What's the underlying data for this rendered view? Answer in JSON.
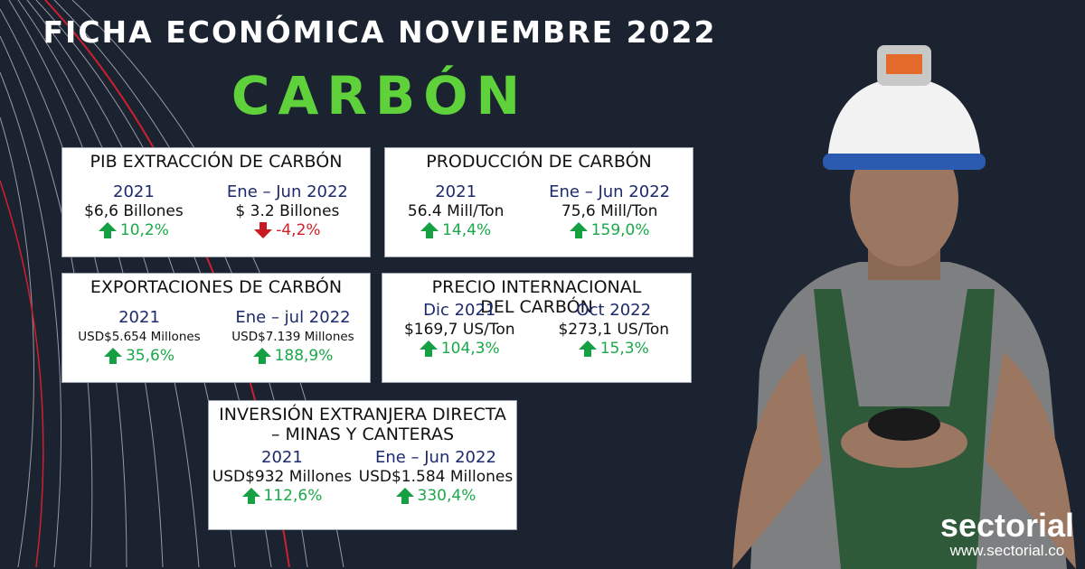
{
  "header": {
    "subtitle": "FICHA ECONÓMICA NOVIEMBRE 2022",
    "title": "CARBÓN"
  },
  "colors": {
    "background": "#1b2230",
    "title_accent": "#5fd13a",
    "up": "#1aa84a",
    "down": "#d0202a",
    "period": "#1d2a6b"
  },
  "cards": [
    {
      "id": "pib",
      "title": "PIB EXTRACCIÓN DE CARBÓN",
      "cols": [
        {
          "period": "2021",
          "value": "$6,6 Billones",
          "change": "10,2%",
          "direction": "up"
        },
        {
          "period": "Ene – Jun 2022",
          "value": "$ 3.2 Billones",
          "change": "-4,2%",
          "direction": "down"
        }
      ]
    },
    {
      "id": "produccion",
      "title": "PRODUCCIÓN DE CARBÓN",
      "cols": [
        {
          "period": "2021",
          "value": "56.4 Mill/Ton",
          "change": "14,4%",
          "direction": "up"
        },
        {
          "period": "Ene – Jun 2022",
          "value": "75,6 Mill/Ton",
          "change": "159,0%",
          "direction": "up"
        }
      ]
    },
    {
      "id": "exportaciones",
      "title": "EXPORTACIONES DE CARBÓN",
      "cols": [
        {
          "period": "2021",
          "value": "USD$5.654 Millones",
          "change": "35,6%",
          "direction": "up",
          "small": true
        },
        {
          "period": "Ene – jul 2022",
          "value": "USD$7.139 Millones",
          "change": "188,9%",
          "direction": "up",
          "small": true
        }
      ]
    },
    {
      "id": "precio",
      "title": "PRECIO INTERNACIONAL DEL CARBÓN",
      "cols": [
        {
          "period": "Dic 2021",
          "value": "$169,7 US/Ton",
          "change": "104,3%",
          "direction": "up"
        },
        {
          "period": "Oct 2022",
          "value": "$273,1 US/Ton",
          "change": "15,3%",
          "direction": "up"
        }
      ]
    },
    {
      "id": "inversion",
      "title": "INVERSIÓN EXTRANJERA DIRECTA – MINAS Y CANTERAS",
      "cols": [
        {
          "period": "2021",
          "value": "USD$932 Millones",
          "change": "112,6%",
          "direction": "up"
        },
        {
          "period": "Ene – Jun 2022",
          "value": "USD$1.584 Millones",
          "change": "330,4%",
          "direction": "up"
        }
      ]
    }
  ],
  "logo": {
    "brand": "sectorial",
    "url": "www.sectorial.co"
  }
}
